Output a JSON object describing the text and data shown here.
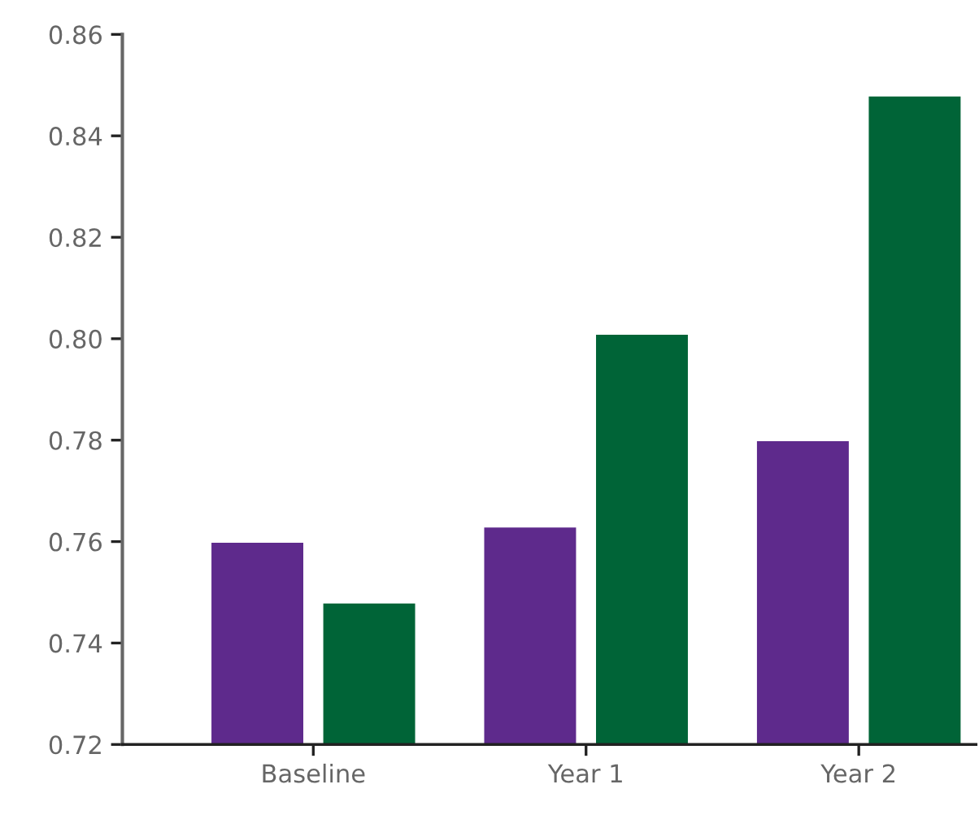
{
  "chart_data": {
    "type": "bar",
    "categories": [
      "Baseline",
      "Year 1",
      "Year 2"
    ],
    "series": [
      {
        "color": "#5e2a8c",
        "values": [
          0.76,
          0.763,
          0.78
        ]
      },
      {
        "color": "#006437",
        "values": [
          0.748,
          0.801,
          0.848
        ]
      }
    ],
    "ylim": [
      0.72,
      0.86
    ],
    "yticks": [
      {
        "value": 0.72,
        "label": "0.72"
      },
      {
        "value": 0.74,
        "label": "0.74"
      },
      {
        "value": 0.76,
        "label": "0.76"
      },
      {
        "value": 0.78,
        "label": "0.78"
      },
      {
        "value": 0.8,
        "label": "0.80"
      },
      {
        "value": 0.82,
        "label": "0.82"
      },
      {
        "value": 0.84,
        "label": "0.84"
      },
      {
        "value": 0.86,
        "label": "0.86"
      }
    ],
    "grid": false
  }
}
